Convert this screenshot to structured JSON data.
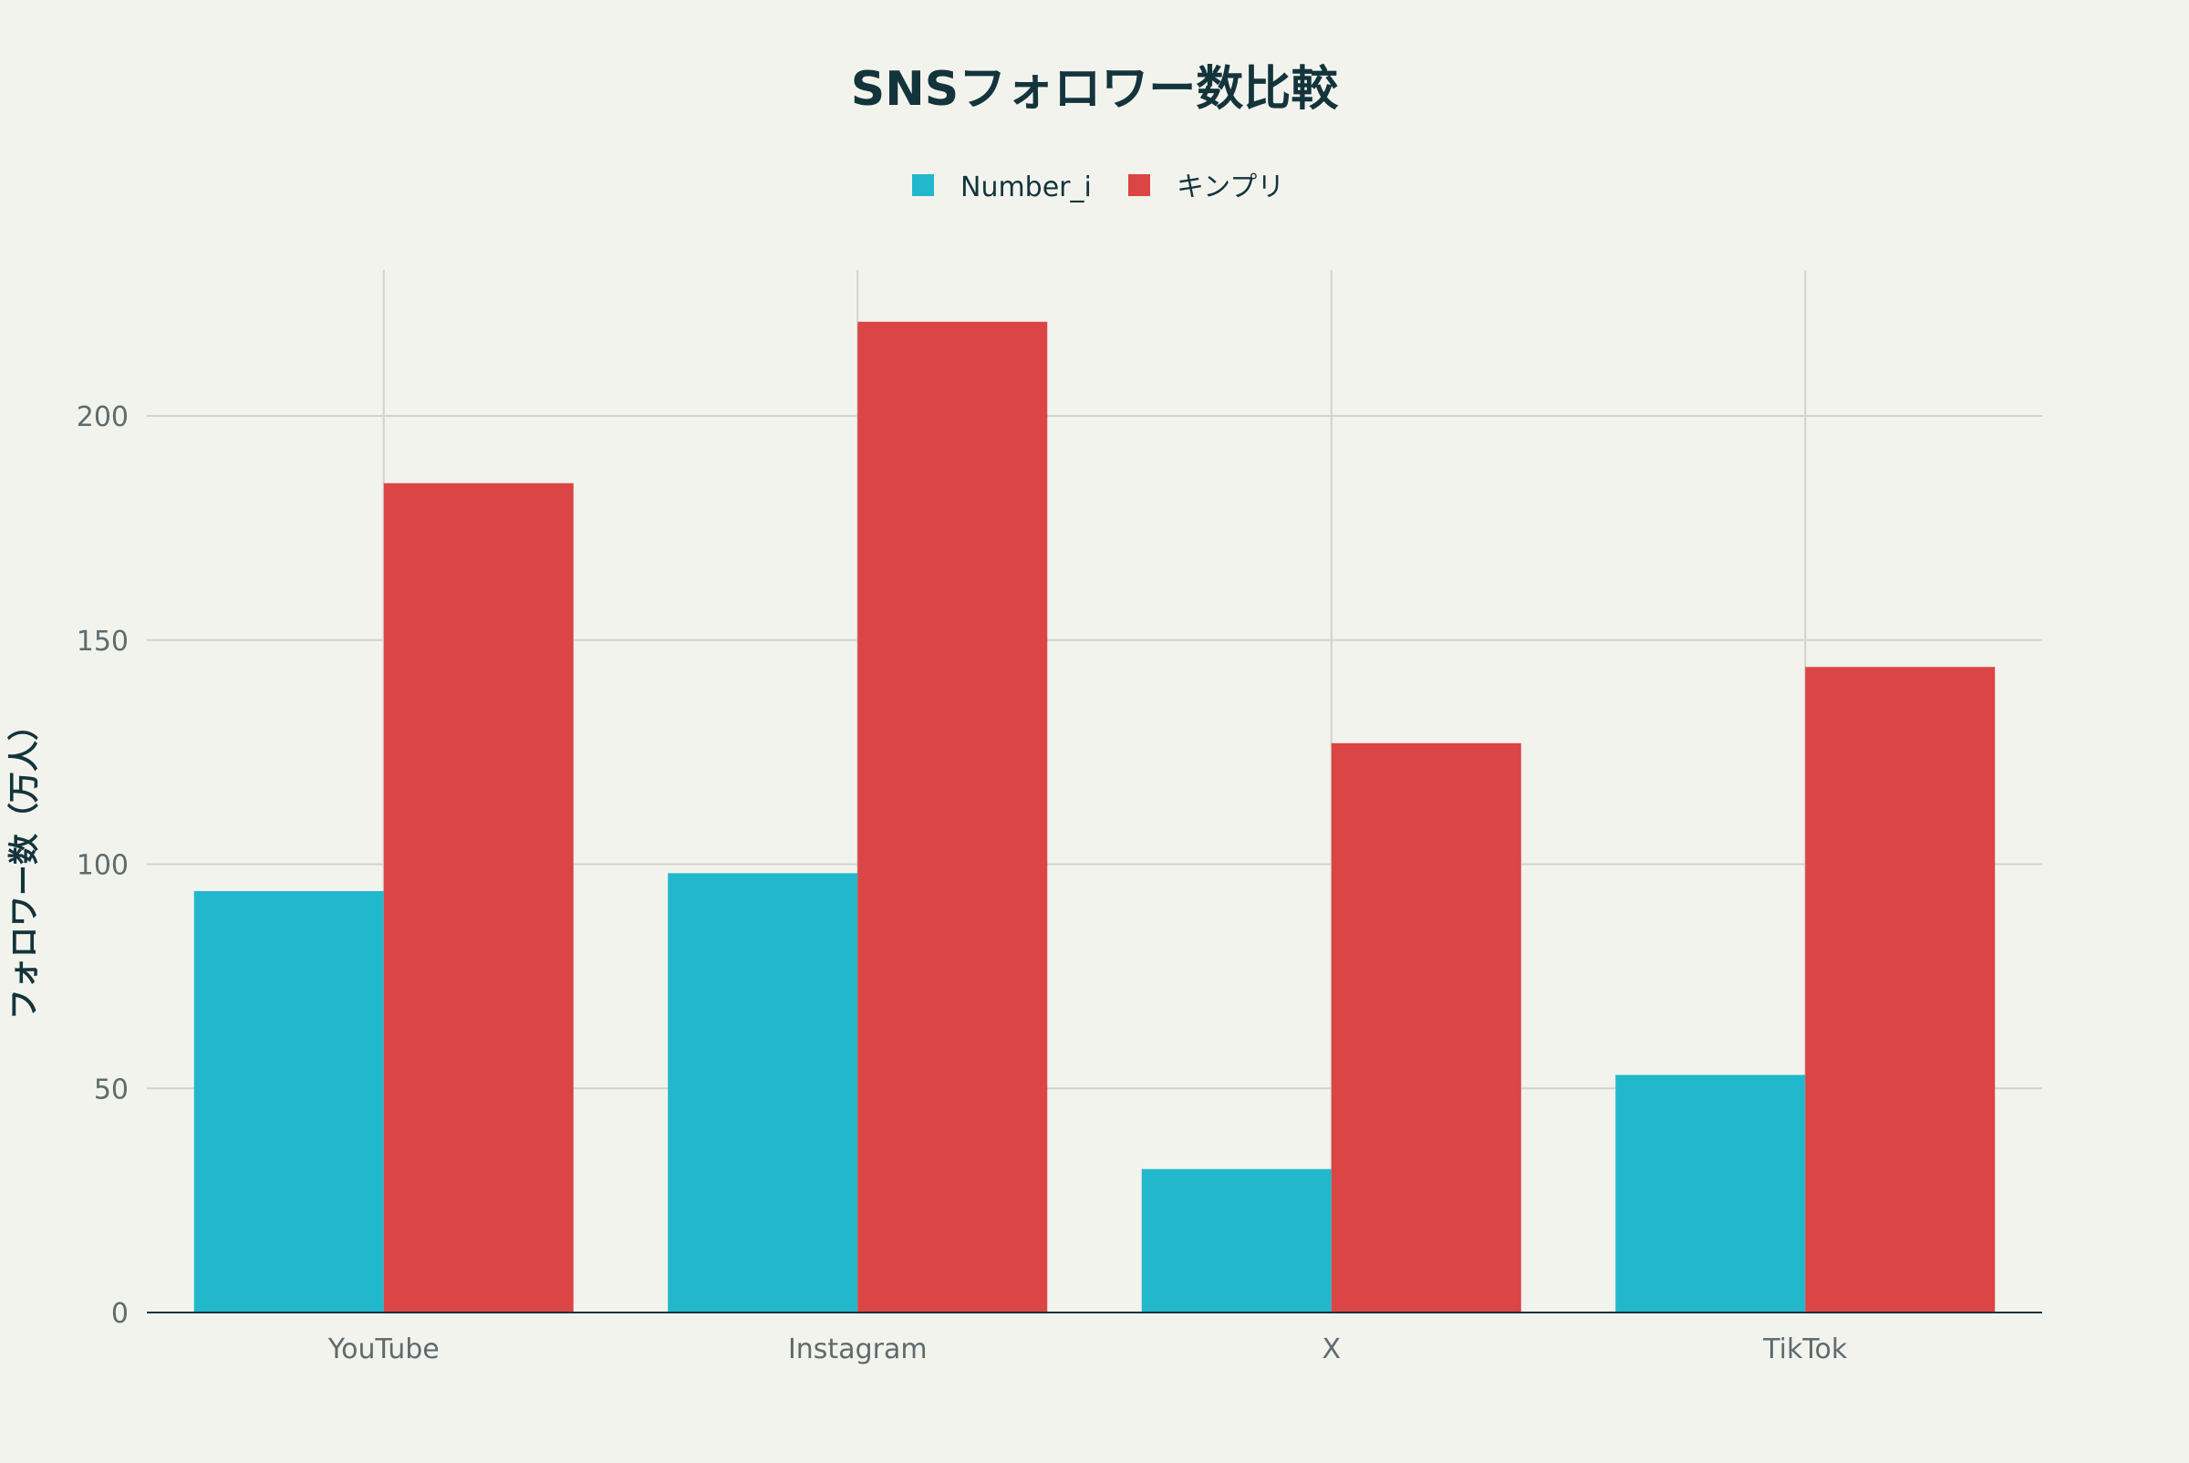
{
  "chart_data": {
    "type": "bar",
    "title": "SNSフォロワー数比較",
    "xlabel": "",
    "ylabel": "フォロワー数（万人）",
    "categories": [
      "YouTube",
      "Instagram",
      "X",
      "TikTok"
    ],
    "series": [
      {
        "name": "Number_i",
        "values": [
          94,
          98,
          32,
          53
        ],
        "color": "#21B8CC"
      },
      {
        "name": "キンプリ",
        "values": [
          185,
          221,
          127,
          144
        ],
        "color": "#DC4545"
      }
    ],
    "ylim": [
      0,
      232
    ],
    "yticks": [
      0,
      50,
      100,
      150,
      200
    ],
    "grid": true,
    "legend": "top-center"
  }
}
